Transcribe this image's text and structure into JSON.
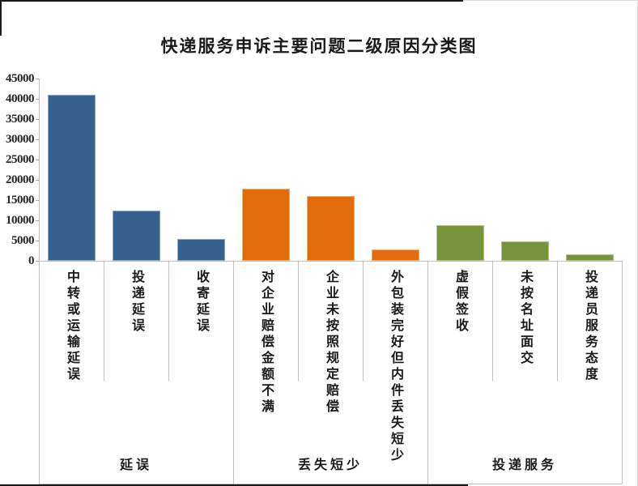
{
  "title": "快递服务申诉主要问题二级原因分类图",
  "chart_data": {
    "type": "bar",
    "title": "快递服务申诉主要问题二级原因分类图",
    "xlabel": "",
    "ylabel": "",
    "ylim": [
      0,
      45000
    ],
    "ytick_interval": 5000,
    "ytick_labels": [
      "45000",
      "40000",
      "35000",
      "30000",
      "25000",
      "20000",
      "15000",
      "10000",
      "5000",
      "0"
    ],
    "grid": false,
    "legend": false,
    "axis_color": "#BFBFBF",
    "text_color": "#1F1F1F",
    "groups": [
      {
        "label": "延误",
        "color": "#36618E",
        "categories": [
          "中转或运输延误",
          "投递延误",
          "收寄延误"
        ],
        "values": [
          41000,
          12400,
          5400
        ]
      },
      {
        "label": "丢失短少",
        "color": "#E36C0A",
        "categories": [
          "对企业赔偿金额不满",
          "企业未按照规定赔偿",
          "外包装完好但内件丢失短少"
        ],
        "values": [
          17700,
          15900,
          2700
        ]
      },
      {
        "label": "投递服务",
        "color": "#77933C",
        "categories": [
          "虚假签收",
          "未按名址面交",
          "投递员服务态度"
        ],
        "values": [
          8700,
          4800,
          1600
        ]
      }
    ]
  }
}
